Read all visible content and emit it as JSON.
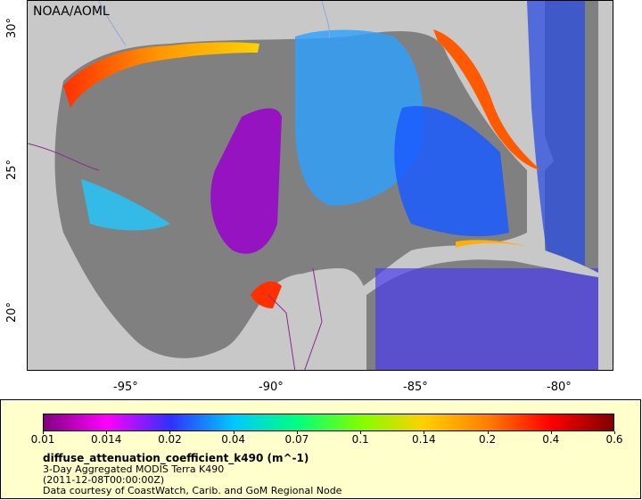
{
  "map": {
    "credit": "NOAA/AOML",
    "lat_ticks": [
      "30°",
      "25°",
      "20°"
    ],
    "lon_ticks": [
      "-95°",
      "-90°",
      "-85°",
      "-80°"
    ],
    "colors": {
      "land": "#c8c8c8",
      "nodata": "#808080",
      "border": "#8a2a8a",
      "river": "#88aadd"
    }
  },
  "legend": {
    "title": "diffuse_attenuation_coefficient_k490 (m^-1)",
    "line1": "3-Day Aggregated MODIS Terra K490",
    "line2": "(2011-12-08T00:00:00Z)",
    "line3": "Data courtesy of CoastWatch, Carib. and GoM Regional Node",
    "ticks": [
      "0.01",
      "0.014",
      "0.02",
      "0.04",
      "0.07",
      "0.1",
      "0.14",
      "0.2",
      "0.4",
      "0.6"
    ],
    "gradient": [
      "#800080",
      "#ff00ff",
      "#3030ff",
      "#00c8ff",
      "#00ff80",
      "#80ff00",
      "#ffd000",
      "#ff8000",
      "#ff0000",
      "#800000"
    ]
  }
}
